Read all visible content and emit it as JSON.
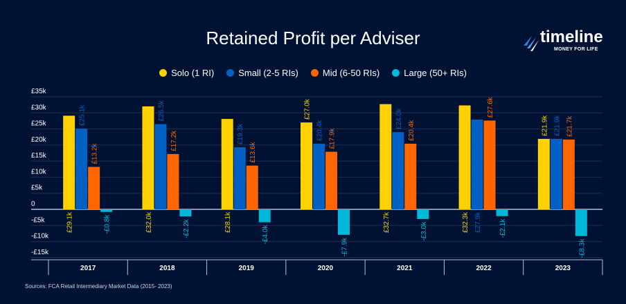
{
  "logo": {
    "name": "timeline",
    "tagline": "MONEY FOR LIFE"
  },
  "source": "Sources: FCA Retail Intermediary Market Data (2015- 2023)",
  "chart_data": {
    "type": "bar",
    "title": "Retained Profit per Adviser",
    "xlabel": "",
    "ylabel": "",
    "ylim": [
      -15,
      35
    ],
    "yticks": [
      35,
      30,
      25,
      20,
      15,
      10,
      5,
      0,
      -5,
      -10,
      -15
    ],
    "ytick_labels": [
      "£35k",
      "£30k",
      "£25k",
      "£20k",
      "£15k",
      "£10k",
      "£5k",
      "0",
      "-£5k",
      "-£10k",
      "-£15k"
    ],
    "grid": true,
    "legend_position": "top",
    "categories": [
      "2017",
      "2018",
      "2019",
      "2020",
      "2021",
      "2022",
      "2023"
    ],
    "series": [
      {
        "name": "Solo (1 RI)",
        "color": "#FFD100",
        "values": [
          29.1,
          32.0,
          28.1,
          27.0,
          32.7,
          32.3,
          21.9
        ],
        "labels": [
          "£29.1k",
          "£32.0k",
          "£28.1k",
          "£27.0k",
          "£32.7k",
          "£32.3k",
          "£21.9k"
        ]
      },
      {
        "name": "Small (2-5 RIs)",
        "color": "#0060C4",
        "values": [
          25.1,
          26.5,
          19.3,
          20.4,
          24.0,
          27.9,
          21.9
        ],
        "labels": [
          "£25.1k",
          "£26.5k",
          "£19.3k",
          "£20.4k",
          "£24.0k",
          "£27.9k",
          "£21.9k"
        ]
      },
      {
        "name": "Mid (6-50 RIs)",
        "color": "#FF6600",
        "values": [
          13.2,
          17.2,
          13.6,
          17.9,
          20.4,
          27.6,
          21.7
        ],
        "labels": [
          "£13.2k",
          "£17.2k",
          "£13.6k",
          "£17.9k",
          "£20.4k",
          "£27.6k",
          "£21.7k"
        ]
      },
      {
        "name": "Large (50+ RIs)",
        "color": "#00B8D9",
        "values": [
          -0.8,
          -2.2,
          -4.0,
          -7.9,
          -3.0,
          -2.1,
          -8.3
        ],
        "labels": [
          "-£0.8k",
          "-£2.2k",
          "-£4.0k",
          "-£7.9k",
          "-£3.0k",
          "-£2.1k",
          "-£8.3k"
        ]
      }
    ]
  }
}
